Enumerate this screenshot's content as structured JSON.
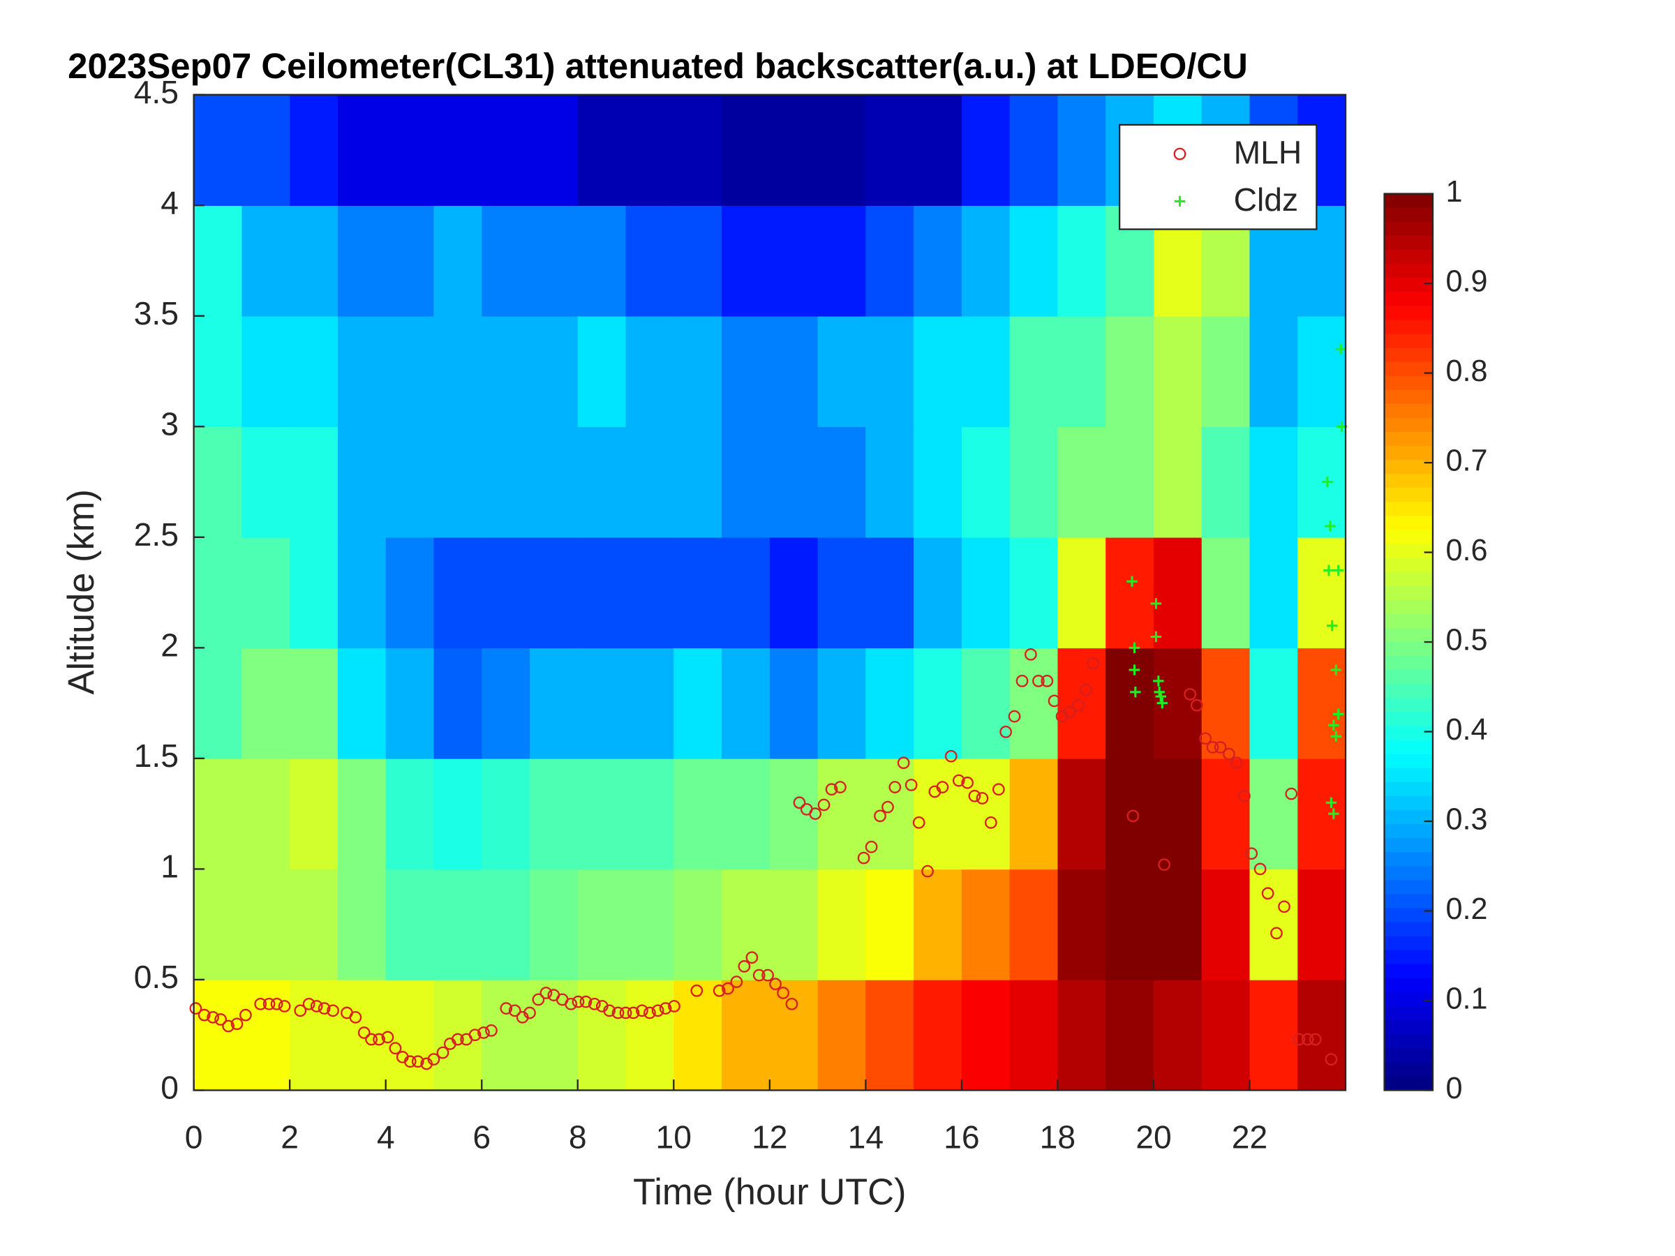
{
  "chart_data": {
    "type": "heatmap",
    "title": "2023Sep07 Ceilometer(CL31) attenuated backscatter(a.u.) at LDEO/CU",
    "x_label": "Time (hour UTC)",
    "y_label": "Altitude (km)",
    "xlim": [
      0,
      24
    ],
    "xticks": [
      0,
      2,
      4,
      6,
      8,
      10,
      12,
      14,
      16,
      18,
      20,
      22
    ],
    "ylim": [
      0,
      4.5
    ],
    "yticks": [
      0,
      0.5,
      1,
      1.5,
      2,
      2.5,
      3,
      3.5,
      4,
      4.5
    ],
    "colormap": "jet",
    "clim": [
      0,
      1
    ],
    "cticks": [
      0,
      0.1,
      0.2,
      0.3,
      0.4,
      0.5,
      0.6,
      0.7,
      0.8,
      0.9,
      1
    ],
    "z_xbins": [
      0,
      1,
      2,
      3,
      4,
      5,
      6,
      7,
      8,
      9,
      10,
      11,
      12,
      13,
      14,
      15,
      16,
      17,
      18,
      19,
      20,
      21,
      22,
      23,
      24
    ],
    "z_ybins": [
      0,
      0.5,
      1,
      1.5,
      2,
      2.5,
      3,
      3.5,
      4,
      4.5
    ],
    "z": [
      [
        0.62,
        0.55,
        0.55,
        0.45,
        0.45,
        0.45,
        0.4,
        0.4,
        0.2
      ],
      [
        0.62,
        0.55,
        0.55,
        0.5,
        0.45,
        0.4,
        0.35,
        0.3,
        0.2
      ],
      [
        0.6,
        0.55,
        0.58,
        0.5,
        0.4,
        0.4,
        0.35,
        0.3,
        0.15
      ],
      [
        0.6,
        0.5,
        0.5,
        0.35,
        0.3,
        0.3,
        0.3,
        0.25,
        0.1
      ],
      [
        0.6,
        0.45,
        0.42,
        0.3,
        0.25,
        0.3,
        0.3,
        0.25,
        0.1
      ],
      [
        0.58,
        0.45,
        0.4,
        0.22,
        0.2,
        0.3,
        0.3,
        0.3,
        0.1
      ],
      [
        0.55,
        0.45,
        0.42,
        0.25,
        0.2,
        0.3,
        0.3,
        0.25,
        0.1
      ],
      [
        0.55,
        0.48,
        0.45,
        0.3,
        0.2,
        0.3,
        0.3,
        0.25,
        0.1
      ],
      [
        0.58,
        0.5,
        0.45,
        0.3,
        0.2,
        0.3,
        0.35,
        0.25,
        0.05
      ],
      [
        0.6,
        0.5,
        0.45,
        0.3,
        0.2,
        0.3,
        0.3,
        0.2,
        0.05
      ],
      [
        0.65,
        0.52,
        0.48,
        0.35,
        0.2,
        0.3,
        0.3,
        0.2,
        0.05
      ],
      [
        0.7,
        0.55,
        0.48,
        0.3,
        0.2,
        0.25,
        0.25,
        0.15,
        0.03
      ],
      [
        0.7,
        0.55,
        0.5,
        0.25,
        0.15,
        0.25,
        0.25,
        0.15,
        0.03
      ],
      [
        0.75,
        0.6,
        0.55,
        0.3,
        0.2,
        0.25,
        0.3,
        0.15,
        0.03
      ],
      [
        0.8,
        0.62,
        0.55,
        0.35,
        0.2,
        0.3,
        0.3,
        0.2,
        0.05
      ],
      [
        0.85,
        0.7,
        0.6,
        0.4,
        0.3,
        0.35,
        0.35,
        0.25,
        0.05
      ],
      [
        0.88,
        0.75,
        0.6,
        0.45,
        0.35,
        0.4,
        0.35,
        0.3,
        0.15
      ],
      [
        0.9,
        0.8,
        0.7,
        0.5,
        0.4,
        0.45,
        0.45,
        0.35,
        0.2
      ],
      [
        0.95,
        0.98,
        0.95,
        0.85,
        0.6,
        0.5,
        0.45,
        0.4,
        0.25
      ],
      [
        0.98,
        1,
        1,
        1,
        0.85,
        0.5,
        0.5,
        0.45,
        0.3
      ],
      [
        0.95,
        1,
        1,
        0.98,
        0.9,
        0.55,
        0.55,
        0.6,
        0.35
      ],
      [
        0.92,
        0.9,
        0.85,
        0.8,
        0.5,
        0.45,
        0.5,
        0.55,
        0.3
      ],
      [
        0.85,
        0.6,
        0.5,
        0.4,
        0.35,
        0.35,
        0.3,
        0.3,
        0.2
      ],
      [
        0.95,
        0.9,
        0.85,
        0.8,
        0.6,
        0.4,
        0.35,
        0.3,
        0.15
      ]
    ],
    "legend": "upper right",
    "series": [
      {
        "name": "MLH",
        "color": "#d62020",
        "marker": "circle",
        "x": [
          0.04,
          0.22,
          0.4,
          0.56,
          0.72,
          0.9,
          1.08,
          1.39,
          1.57,
          1.73,
          1.89,
          2.22,
          2.4,
          2.56,
          2.72,
          2.9,
          3.19,
          3.37,
          3.55,
          3.7,
          3.86,
          4.04,
          4.2,
          4.35,
          4.51,
          4.67,
          4.85,
          5.0,
          5.19,
          5.34,
          5.5,
          5.68,
          5.86,
          6.04,
          6.2,
          6.51,
          6.69,
          6.85,
          7.0,
          7.18,
          7.34,
          7.5,
          7.68,
          7.86,
          8.01,
          8.17,
          8.35,
          8.51,
          8.66,
          8.84,
          9.0,
          9.16,
          9.34,
          9.5,
          9.67,
          9.83,
          10.01,
          10.48,
          10.95,
          11.13,
          11.31,
          11.47,
          11.63,
          11.78,
          11.96,
          12.12,
          12.28,
          12.46,
          12.62,
          12.77,
          12.95,
          13.13,
          13.29,
          13.47,
          13.96,
          14.12,
          14.3,
          14.46,
          14.61,
          14.79,
          14.95,
          15.11,
          15.29,
          15.44,
          15.6,
          15.78,
          15.94,
          16.12,
          16.27,
          16.43,
          16.61,
          16.77,
          16.92,
          17.1,
          17.26,
          17.44,
          17.6,
          17.78,
          17.93,
          18.09,
          18.25,
          18.43,
          18.59,
          18.74,
          19.57,
          20.22,
          20.76,
          20.9,
          21.08,
          21.23,
          21.39,
          21.57,
          21.73,
          21.89,
          22.04,
          22.22,
          22.38,
          22.56,
          22.72,
          22.87,
          23.03,
          23.21,
          23.37,
          23.7
        ],
        "values": [
          0.37,
          0.34,
          0.33,
          0.32,
          0.29,
          0.3,
          0.34,
          0.39,
          0.39,
          0.39,
          0.38,
          0.36,
          0.39,
          0.38,
          0.37,
          0.36,
          0.35,
          0.33,
          0.26,
          0.23,
          0.23,
          0.24,
          0.19,
          0.15,
          0.13,
          0.13,
          0.12,
          0.14,
          0.17,
          0.21,
          0.23,
          0.23,
          0.25,
          0.26,
          0.27,
          0.37,
          0.36,
          0.33,
          0.35,
          0.41,
          0.44,
          0.43,
          0.41,
          0.39,
          0.4,
          0.4,
          0.39,
          0.38,
          0.36,
          0.35,
          0.35,
          0.35,
          0.36,
          0.35,
          0.36,
          0.37,
          0.38,
          0.45,
          0.45,
          0.46,
          0.49,
          0.56,
          0.6,
          0.52,
          0.52,
          0.48,
          0.44,
          0.39,
          1.3,
          1.27,
          1.25,
          1.29,
          1.36,
          1.37,
          1.05,
          1.1,
          1.24,
          1.28,
          1.37,
          1.48,
          1.38,
          1.21,
          0.99,
          1.35,
          1.37,
          1.51,
          1.4,
          1.39,
          1.33,
          1.32,
          1.21,
          1.36,
          1.62,
          1.69,
          1.85,
          1.97,
          1.85,
          1.85,
          1.76,
          1.69,
          1.71,
          1.74,
          1.81,
          1.93,
          1.24,
          1.02,
          1.79,
          1.74,
          1.59,
          1.55,
          1.55,
          1.52,
          1.48,
          1.33,
          1.07,
          1.0,
          0.89,
          0.71,
          0.83,
          1.34,
          0.23,
          0.23,
          0.23,
          0.14
        ]
      },
      {
        "name": "Cldz",
        "color": "#22ee22",
        "marker": "plus",
        "x": [
          19.55,
          19.6,
          19.6,
          19.62,
          20.05,
          20.05,
          20.1,
          20.12,
          20.15,
          20.18,
          23.62,
          23.68,
          23.65,
          23.72,
          23.8,
          23.75,
          23.8,
          23.7,
          23.75,
          23.9,
          23.92,
          23.85,
          23.85
        ],
        "values": [
          2.3,
          2.0,
          1.9,
          1.8,
          2.2,
          2.05,
          1.85,
          1.8,
          1.78,
          1.75,
          2.75,
          2.55,
          2.35,
          2.1,
          1.9,
          1.65,
          1.6,
          1.3,
          1.25,
          3.35,
          3.0,
          2.35,
          1.7
        ]
      }
    ]
  }
}
